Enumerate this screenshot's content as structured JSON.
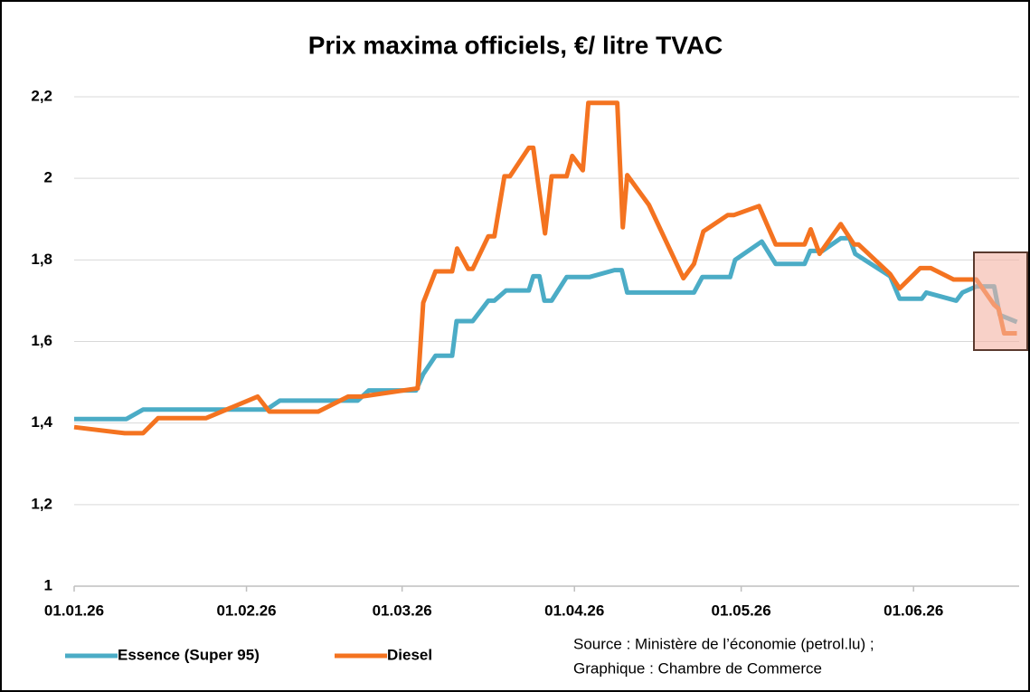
{
  "chart_data": {
    "type": "line",
    "title": "Prix maxima officiels, €/ litre TVAC",
    "xlim": [
      0,
      170
    ],
    "xticks": [
      {
        "value": 0,
        "label": "01.01.26"
      },
      {
        "value": 31,
        "label": "01.02.26"
      },
      {
        "value": 59,
        "label": "01.03.26"
      },
      {
        "value": 90,
        "label": "01.04.26"
      },
      {
        "value": 120,
        "label": "01.05.26"
      },
      {
        "value": 151,
        "label": "01.06.26"
      }
    ],
    "ylim": [
      1,
      2.2
    ],
    "yticks": [
      1,
      {
        "value": 1.2,
        "label": "1,2"
      },
      {
        "value": 1.4,
        "label": "1,4"
      },
      {
        "value": 1.6,
        "label": "1,6"
      },
      {
        "value": 1.8,
        "label": "1,8"
      },
      2,
      {
        "value": 2.2,
        "label": "2,2"
      }
    ],
    "grid": true,
    "legend": "bottom-left",
    "annotation": [
      "Source : Ministère de l’économie (petrol.lu) ;",
      "Graphique : Chambre de Commerce"
    ],
    "series": [
      {
        "name": "Essence (Super 95)",
        "color": "#4bacc6",
        "x": [
          0,
          9.4,
          12.4,
          34.6,
          37,
          51,
          53,
          61.5,
          62.8,
          65,
          68,
          68.8,
          71.7,
          74.5,
          75.6,
          77.7,
          81.8,
          82.6,
          83.7,
          84.6,
          85.9,
          88.6,
          92.7,
          97.2,
          98.5,
          99.5,
          111.5,
          113,
          118,
          118.9,
          123.7,
          126.2,
          131.4,
          132.4,
          134.6,
          137.9,
          139.5,
          140.5,
          146.8,
          148.5,
          152.5,
          153.3,
          158.7,
          159.8,
          162.3,
          165.5,
          166.5,
          169.6
        ],
        "values": [
          1.41,
          1.41,
          1.433,
          1.433,
          1.455,
          1.455,
          1.48,
          1.48,
          1.52,
          1.565,
          1.565,
          1.65,
          1.65,
          1.7,
          1.7,
          1.725,
          1.725,
          1.76,
          1.76,
          1.7,
          1.7,
          1.758,
          1.758,
          1.775,
          1.775,
          1.72,
          1.72,
          1.758,
          1.758,
          1.8,
          1.845,
          1.79,
          1.79,
          1.822,
          1.822,
          1.853,
          1.853,
          1.815,
          1.76,
          1.705,
          1.705,
          1.72,
          1.7,
          1.72,
          1.735,
          1.735,
          1.665,
          1.648
        ]
      },
      {
        "name": "Diesel",
        "color": "#f47320",
        "x": [
          0,
          9.1,
          12.4,
          15.1,
          23.7,
          33,
          35.1,
          43.9,
          49.3,
          51.7,
          61.8,
          62.8,
          65,
          68,
          68.9,
          70.9,
          71.7,
          74.5,
          75.6,
          77.4,
          78.4,
          81.8,
          82.6,
          84.7,
          85.9,
          88.6,
          89.6,
          91.5,
          92.5,
          97.7,
          98.7,
          99.5,
          103.4,
          109.6,
          111.5,
          113.2,
          117.6,
          118.7,
          123.2,
          126.2,
          131.4,
          132.5,
          134.1,
          137.9,
          140.3,
          141.1,
          146.8,
          148.5,
          152.2,
          154.1,
          158.2,
          162.3,
          165.5,
          166.3,
          167.3,
          169.6
        ],
        "values": [
          1.39,
          1.375,
          1.375,
          1.412,
          1.412,
          1.465,
          1.428,
          1.428,
          1.465,
          1.465,
          1.485,
          1.695,
          1.772,
          1.772,
          1.828,
          1.778,
          1.778,
          1.858,
          1.858,
          2.005,
          2.005,
          2.075,
          2.075,
          1.865,
          2.005,
          2.005,
          2.055,
          2.02,
          2.185,
          2.185,
          1.88,
          2.008,
          1.935,
          1.755,
          1.79,
          1.87,
          1.91,
          1.91,
          1.932,
          1.838,
          1.838,
          1.875,
          1.815,
          1.888,
          1.838,
          1.838,
          1.765,
          1.73,
          1.78,
          1.78,
          1.752,
          1.752,
          1.69,
          1.68,
          1.62,
          1.62
        ]
      }
    ]
  }
}
